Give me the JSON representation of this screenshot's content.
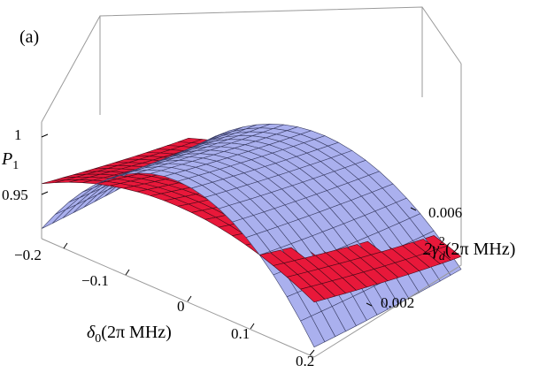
{
  "chart_data": {
    "type": "surface3d",
    "panel_label": "(a)",
    "z_axis": {
      "label_main": "P",
      "label_sub": "1",
      "ticks": [
        "1",
        "0.95"
      ],
      "range": [
        0.93,
        1.0
      ]
    },
    "x_axis": {
      "label_main": "δ",
      "label_sub": "0",
      "label_rest": "(2π MHz)",
      "ticks": [
        "−0.2",
        "−0.1",
        "0",
        "0.1",
        "0.2"
      ],
      "range": [
        -0.2,
        0.2
      ]
    },
    "y_axis": {
      "label_main": "2γ",
      "label_sup": "2",
      "label_sub": "d",
      "label_rest": "(2π MHz)",
      "ticks": [
        "0.002",
        "0.006"
      ],
      "range": [
        0.0,
        0.008
      ]
    },
    "series": [
      {
        "color": "#e8183a",
        "grid_color": "#4a0a18",
        "shape": "flat ridge, P1 ≈ 1 at δ0 = 0, weak dependence on δ0"
      },
      {
        "color": "#aab0ee",
        "grid_color": "#3a3e66",
        "shape": "parabolic in δ0, P1 ≈ 1 at δ0 = 0, falls to ≈ 0.93 at δ0 = ±0.2"
      }
    ]
  }
}
